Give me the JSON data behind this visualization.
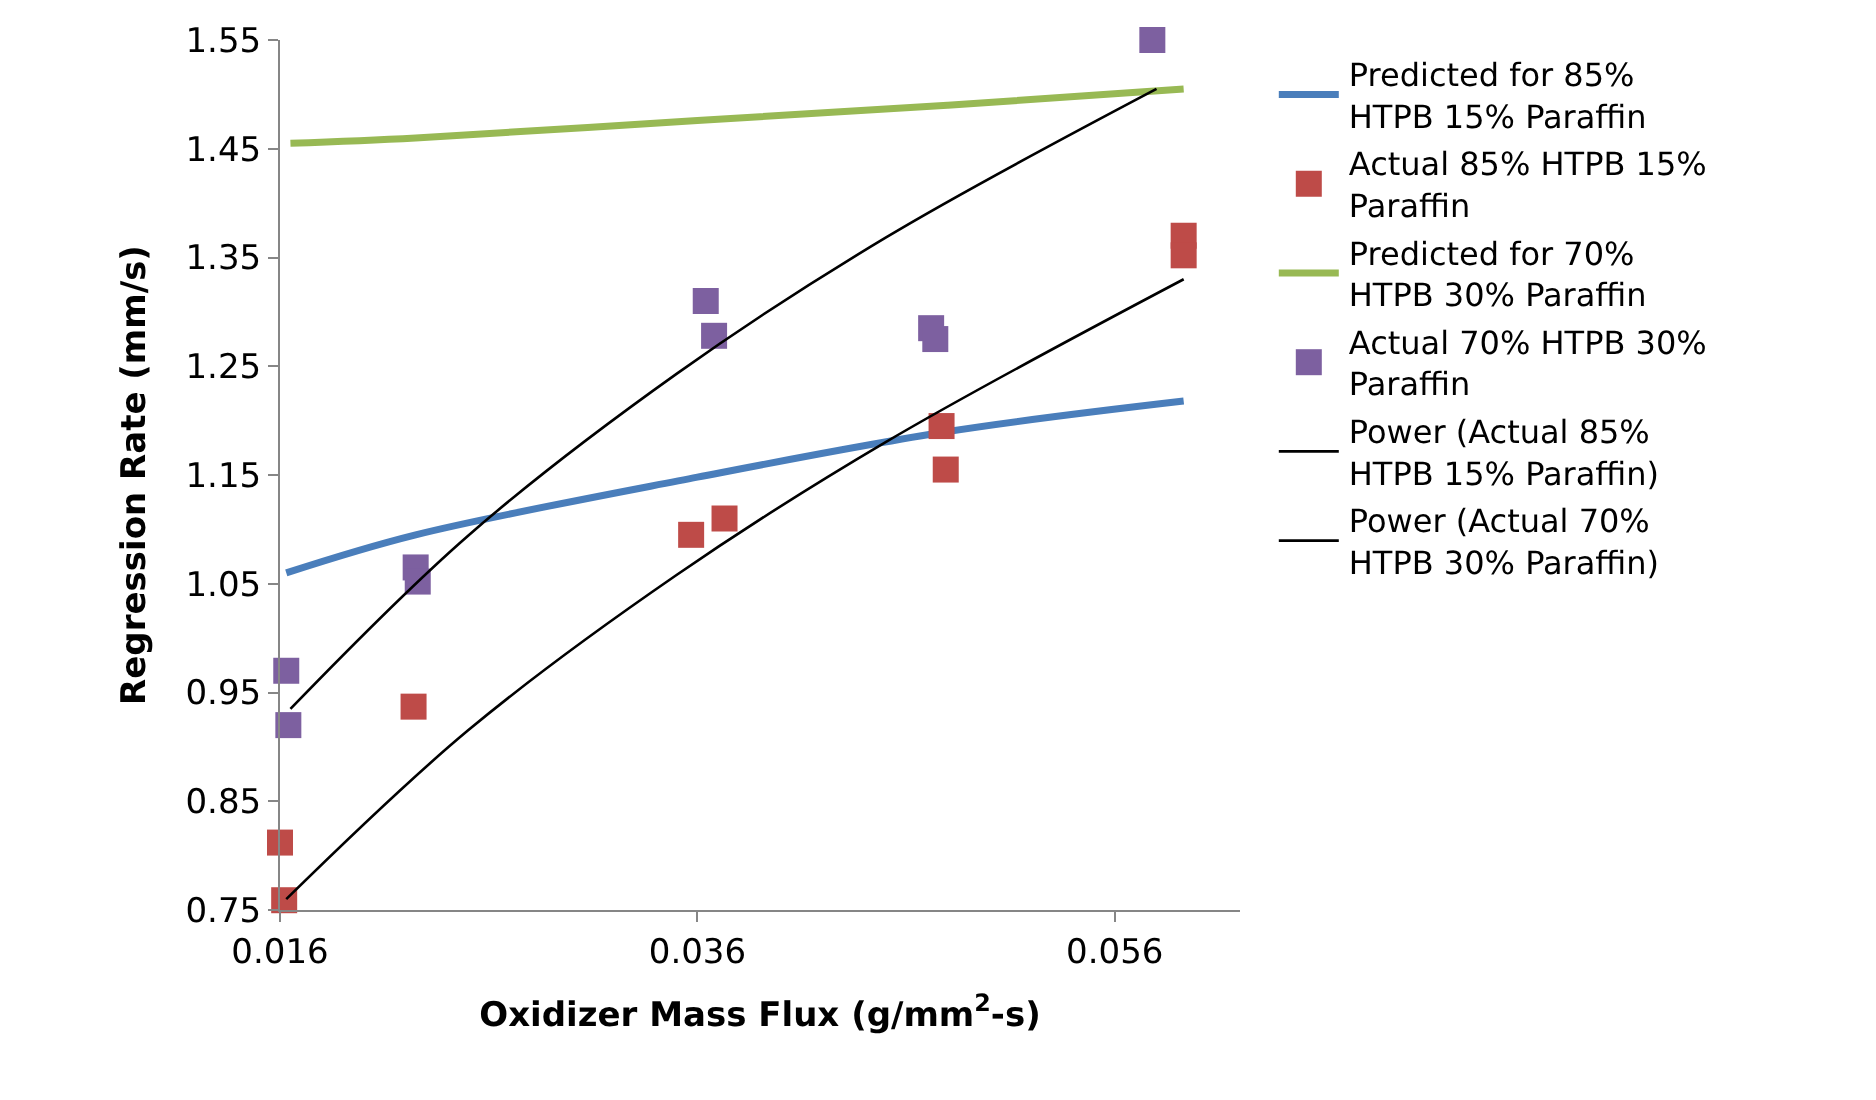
{
  "chart_data": {
    "type": "scatter",
    "xlabel": "Oxidizer Mass Flux (g/mm$^{2}$-s)",
    "ylabel": "Regression Rate (mm/s)",
    "xlim": [
      0.016,
      0.062
    ],
    "xticks": [
      0.016,
      0.036,
      0.056
    ],
    "ylim": [
      0.75,
      1.55
    ],
    "yticks": [
      0.75,
      0.85,
      0.95,
      1.05,
      1.15,
      1.25,
      1.35,
      1.45,
      1.55
    ],
    "legend": "right",
    "line_style": "solid",
    "series": [
      {
        "name": "Predicted for 85% HTPB 15% Paraffin",
        "type": "line",
        "marker": "none",
        "color": "#4a7ebb",
        "x": [
          0.0163,
          0.0225,
          0.036,
          0.048,
          0.0593
        ],
        "values": [
          1.06,
          1.095,
          1.148,
          1.19,
          1.218
        ]
      },
      {
        "name": "Actual 85% HTPB 15% Paraffin",
        "marker": "square",
        "color": "#be4b48",
        "x": [
          0.016,
          0.0162,
          0.0224,
          0.0357,
          0.0373,
          0.0477,
          0.0479,
          0.0593,
          0.0593
        ],
        "values": [
          0.812,
          0.759,
          0.937,
          1.095,
          1.11,
          1.195,
          1.155,
          1.37,
          1.352
        ]
      },
      {
        "name": "Predicted for 70% HTPB 30% Paraffin",
        "type": "line",
        "marker": "none",
        "color": "#98b954",
        "x": [
          0.0165,
          0.0225,
          0.036,
          0.048,
          0.0593
        ],
        "values": [
          1.455,
          1.46,
          1.476,
          1.49,
          1.505
        ]
      },
      {
        "name": "Actual 70% HTPB 30% Paraffin",
        "marker": "square",
        "color": "#7d60a0",
        "x": [
          0.0163,
          0.0164,
          0.0225,
          0.0226,
          0.0364,
          0.0368,
          0.0472,
          0.0474,
          0.0578
        ],
        "values": [
          0.97,
          0.92,
          1.065,
          1.052,
          1.31,
          1.278,
          1.285,
          1.275,
          1.55
        ]
      },
      {
        "name": "Power (Actual 85% HTPB 15% Paraffin)",
        "type": "line",
        "marker": "none",
        "color": "#000000",
        "x": [
          0.0163,
          0.025,
          0.035,
          0.045,
          0.0593
        ],
        "values": [
          0.76,
          0.915,
          1.058,
          1.18,
          1.33
        ]
      },
      {
        "name": "Power (Actual 70% HTPB 30% Paraffin)",
        "type": "line",
        "marker": "none",
        "color": "#000000",
        "x": [
          0.0165,
          0.025,
          0.035,
          0.045,
          0.058
        ],
        "values": [
          0.935,
          1.094,
          1.243,
          1.368,
          1.505
        ]
      }
    ]
  }
}
